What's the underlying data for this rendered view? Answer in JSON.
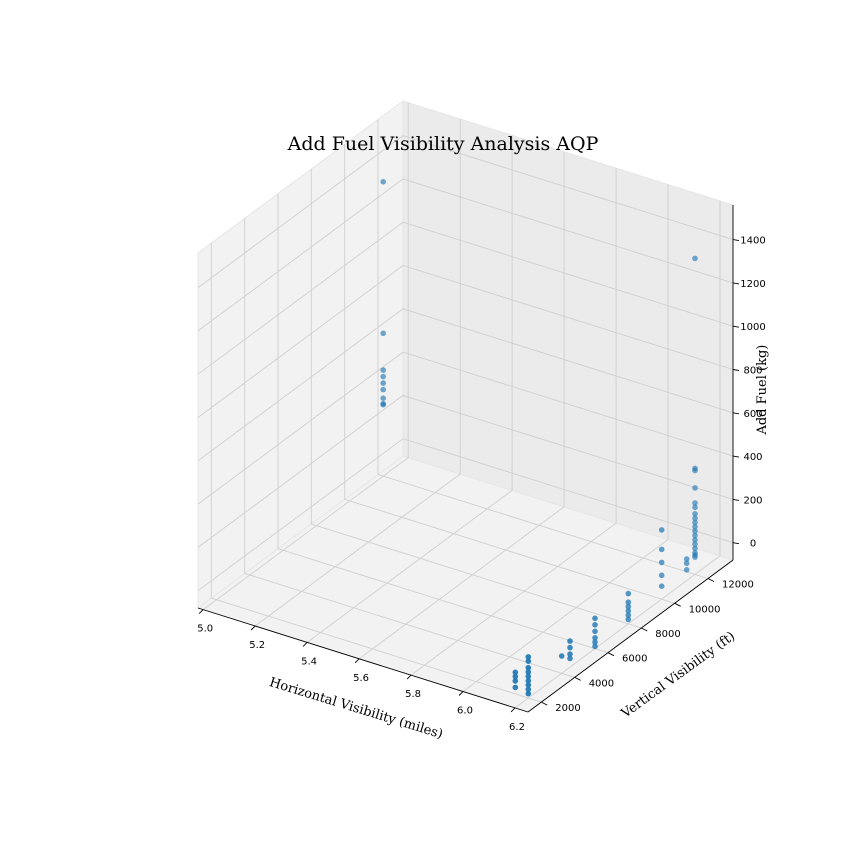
{
  "chart_data": {
    "type": "scatter3d",
    "title": "Add Fuel Visibility Analysis AQP",
    "xlabel": "Horizontal Visibility (miles)",
    "ylabel": "Vertical Visibility (ft)",
    "zlabel": "Add Fuel (kg)",
    "x_ticks": [
      "5.0",
      "5.2",
      "5.4",
      "5.6",
      "5.8",
      "6.0",
      "6.2"
    ],
    "y_ticks": [
      "2000",
      "4000",
      "6000",
      "8000",
      "10000",
      "12000"
    ],
    "z_ticks": [
      "0",
      "200",
      "400",
      "600",
      "800",
      "1000",
      "1200",
      "1400"
    ],
    "xlim": [
      4.98,
      6.25
    ],
    "ylim": [
      1200,
      13500
    ],
    "zlim": [
      -80,
      1560
    ],
    "grid": true,
    "color": "#1f77b4",
    "points": [
      {
        "x": 5.0,
        "y": 12000,
        "z": 1280
      },
      {
        "x": 5.0,
        "y": 12000,
        "z": 580
      },
      {
        "x": 5.0,
        "y": 12000,
        "z": 410
      },
      {
        "x": 5.0,
        "y": 12000,
        "z": 380
      },
      {
        "x": 5.0,
        "y": 12000,
        "z": 350
      },
      {
        "x": 5.0,
        "y": 12000,
        "z": 320
      },
      {
        "x": 5.0,
        "y": 12000,
        "z": 280
      },
      {
        "x": 5.0,
        "y": 12000,
        "z": 255
      },
      {
        "x": 5.0,
        "y": 12000,
        "z": 250
      },
      {
        "x": 6.2,
        "y": 12000,
        "z": 1380
      },
      {
        "x": 6.2,
        "y": 12000,
        "z": 410
      },
      {
        "x": 6.2,
        "y": 12000,
        "z": 400
      },
      {
        "x": 6.2,
        "y": 12000,
        "z": 320
      },
      {
        "x": 6.2,
        "y": 12000,
        "z": 250
      },
      {
        "x": 6.2,
        "y": 12000,
        "z": 230
      },
      {
        "x": 6.2,
        "y": 12000,
        "z": 200
      },
      {
        "x": 6.2,
        "y": 12000,
        "z": 180
      },
      {
        "x": 6.2,
        "y": 12000,
        "z": 160
      },
      {
        "x": 6.2,
        "y": 12000,
        "z": 140
      },
      {
        "x": 6.2,
        "y": 12000,
        "z": 120
      },
      {
        "x": 6.2,
        "y": 12000,
        "z": 100
      },
      {
        "x": 6.2,
        "y": 12000,
        "z": 80
      },
      {
        "x": 6.2,
        "y": 12000,
        "z": 60
      },
      {
        "x": 6.2,
        "y": 12000,
        "z": 40
      },
      {
        "x": 6.2,
        "y": 12000,
        "z": 20
      },
      {
        "x": 6.2,
        "y": 12000,
        "z": 10
      },
      {
        "x": 6.2,
        "y": 12000,
        "z": 0
      },
      {
        "x": 6.2,
        "y": 11500,
        "z": 20
      },
      {
        "x": 6.2,
        "y": 11500,
        "z": 0
      },
      {
        "x": 6.2,
        "y": 11500,
        "z": -30
      },
      {
        "x": 6.2,
        "y": 10000,
        "z": 240
      },
      {
        "x": 6.2,
        "y": 10000,
        "z": 150
      },
      {
        "x": 6.2,
        "y": 10000,
        "z": 90
      },
      {
        "x": 6.2,
        "y": 10000,
        "z": 30
      },
      {
        "x": 6.2,
        "y": 10000,
        "z": -20
      },
      {
        "x": 6.2,
        "y": 8000,
        "z": 60
      },
      {
        "x": 6.2,
        "y": 8000,
        "z": 20
      },
      {
        "x": 6.2,
        "y": 8000,
        "z": 0
      },
      {
        "x": 6.2,
        "y": 8000,
        "z": -20
      },
      {
        "x": 6.2,
        "y": 8000,
        "z": -40
      },
      {
        "x": 6.2,
        "y": 8000,
        "z": -60
      },
      {
        "x": 6.2,
        "y": 6000,
        "z": 60
      },
      {
        "x": 6.2,
        "y": 6000,
        "z": 30
      },
      {
        "x": 6.2,
        "y": 6000,
        "z": 0
      },
      {
        "x": 6.2,
        "y": 6000,
        "z": -30
      },
      {
        "x": 6.2,
        "y": 6000,
        "z": -50
      },
      {
        "x": 6.2,
        "y": 6000,
        "z": -70
      },
      {
        "x": 6.2,
        "y": 4500,
        "z": 40
      },
      {
        "x": 6.2,
        "y": 4500,
        "z": 10
      },
      {
        "x": 6.2,
        "y": 4500,
        "z": -20
      },
      {
        "x": 6.2,
        "y": 4500,
        "z": -40
      },
      {
        "x": 6.2,
        "y": 4000,
        "z": 0
      },
      {
        "x": 6.2,
        "y": 2000,
        "z": 110
      },
      {
        "x": 6.2,
        "y": 2000,
        "z": 90
      },
      {
        "x": 6.2,
        "y": 2000,
        "z": 60
      },
      {
        "x": 6.2,
        "y": 2000,
        "z": 40
      },
      {
        "x": 6.2,
        "y": 2000,
        "z": 20
      },
      {
        "x": 6.2,
        "y": 2000,
        "z": 0
      },
      {
        "x": 6.2,
        "y": 2000,
        "z": -20
      },
      {
        "x": 6.2,
        "y": 2000,
        "z": -40
      },
      {
        "x": 6.2,
        "y": 2000,
        "z": -60
      },
      {
        "x": 6.15,
        "y": 2000,
        "z": 20
      },
      {
        "x": 6.15,
        "y": 2000,
        "z": 0
      },
      {
        "x": 6.15,
        "y": 2000,
        "z": -20
      },
      {
        "x": 6.15,
        "y": 2000,
        "z": -50
      }
    ]
  }
}
